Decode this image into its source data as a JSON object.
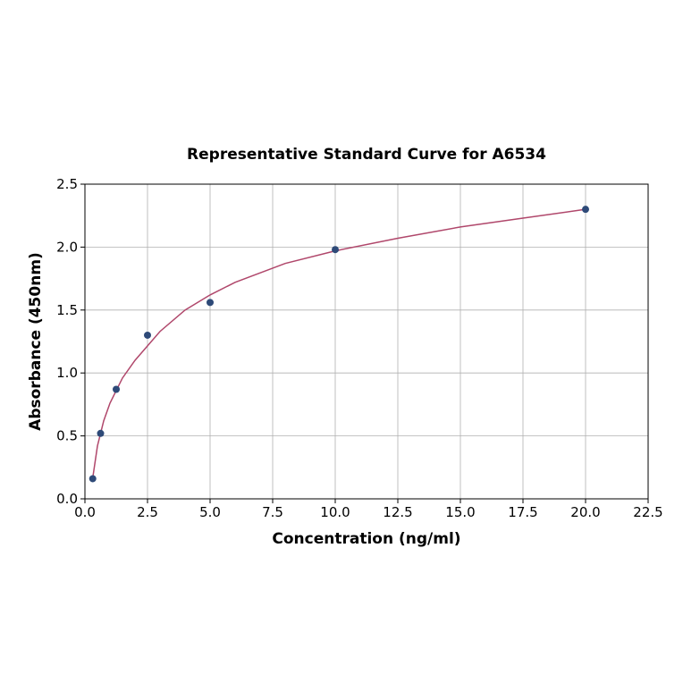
{
  "chart_data": {
    "type": "scatter",
    "title": "Representative Standard Curve for A6534",
    "x_label": "Concentration (ng/ml)",
    "y_label": "Absorbance (450nm)",
    "xlim": [
      0,
      22.5
    ],
    "ylim": [
      0,
      2.5
    ],
    "xticks": [
      {
        "value": 0,
        "label": "0.0"
      },
      2.5,
      {
        "value": 5,
        "label": "5.0"
      },
      7.5,
      {
        "value": 10,
        "label": "10.0"
      },
      12.5,
      {
        "value": 15,
        "label": "15.0"
      },
      17.5,
      {
        "value": 20,
        "label": "20.0"
      },
      22.5
    ],
    "yticks": [
      {
        "value": 0,
        "label": "0.0"
      },
      0.5,
      {
        "value": 1,
        "label": "1.0"
      },
      1.5,
      {
        "value": 2,
        "label": "2.0"
      },
      2.5
    ],
    "grid": true,
    "series": [
      {
        "type": "line",
        "color": "#b0476b",
        "x": [
          0.3,
          0.5,
          0.75,
          1,
          1.5,
          2,
          3,
          4,
          5,
          6,
          8,
          10,
          12.5,
          15,
          17.5,
          20
        ],
        "values": [
          0.15,
          0.42,
          0.62,
          0.76,
          0.96,
          1.1,
          1.33,
          1.5,
          1.62,
          1.72,
          1.87,
          1.97,
          2.07,
          2.16,
          2.23,
          2.3
        ]
      },
      {
        "type": "scatter",
        "color": "#2e4a78",
        "x": [
          0.312,
          0.625,
          1.25,
          2.5,
          5,
          10,
          20
        ],
        "values": [
          0.16,
          0.52,
          0.87,
          1.3,
          1.56,
          1.98,
          2.3
        ]
      }
    ]
  }
}
